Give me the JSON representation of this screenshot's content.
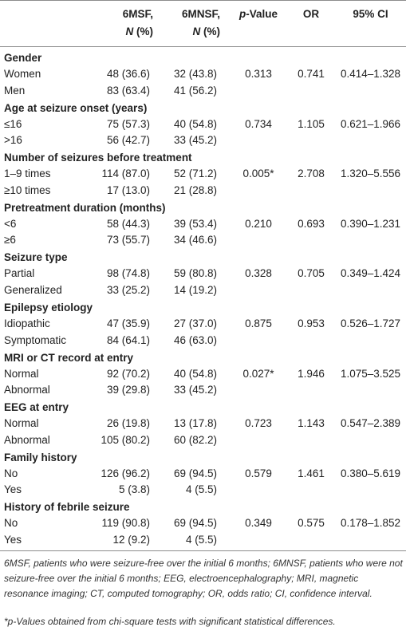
{
  "table": {
    "headers": {
      "col1_line1": "6MSF,",
      "col1_n": "N",
      "col1_pct": " (%)",
      "col2_line1": "6MNSF,",
      "col2_n": "N",
      "col2_pct": " (%)",
      "col3_p": "p",
      "col3_rest": "-Value",
      "col4": "OR",
      "col5": "95% CI"
    },
    "sections": [
      {
        "title": "Gender",
        "p": "0.313",
        "or": "0.741",
        "ci": "0.414–1.328",
        "rows": [
          {
            "label": "Women",
            "a": "48 (36.6)",
            "b": "32 (43.8)"
          },
          {
            "label": "Men",
            "a": "83 (63.4)",
            "b": "41 (56.2)"
          }
        ]
      },
      {
        "title": "Age at seizure onset (years)",
        "p": "0.734",
        "or": "1.105",
        "ci": "0.621–1.966",
        "rows": [
          {
            "label": "≤16",
            "a": "75 (57.3)",
            "b": "40 (54.8)"
          },
          {
            "label": ">16",
            "a": "56 (42.7)",
            "b": "33 (45.2)"
          }
        ]
      },
      {
        "title": "Number of seizures before treatment",
        "p": "0.005*",
        "or": "2.708",
        "ci": "1.320–5.556",
        "rows": [
          {
            "label": "1–9 times",
            "a": "114 (87.0)",
            "b": "52 (71.2)"
          },
          {
            "label": "≥10 times",
            "a": "17 (13.0)",
            "b": "21 (28.8)"
          }
        ]
      },
      {
        "title": "Pretreatment duration (months)",
        "p": "0.210",
        "or": "0.693",
        "ci": "0.390–1.231",
        "rows": [
          {
            "label": "<6",
            "a": "58 (44.3)",
            "b": "39 (53.4)"
          },
          {
            "label": "≥6",
            "a": "73 (55.7)",
            "b": "34 (46.6)"
          }
        ]
      },
      {
        "title": "Seizure type",
        "p": "0.328",
        "or": "0.705",
        "ci": "0.349–1.424",
        "rows": [
          {
            "label": "Partial",
            "a": "98 (74.8)",
            "b": "59 (80.8)"
          },
          {
            "label": "Generalized",
            "a": "33 (25.2)",
            "b": "14 (19.2)"
          }
        ]
      },
      {
        "title": "Epilepsy etiology",
        "p": "0.875",
        "or": "0.953",
        "ci": "0.526–1.727",
        "rows": [
          {
            "label": "Idiopathic",
            "a": "47 (35.9)",
            "b": "27 (37.0)"
          },
          {
            "label": "Symptomatic",
            "a": "84 (64.1)",
            "b": "46 (63.0)"
          }
        ]
      },
      {
        "title": "MRI or CT record at entry",
        "p": "0.027*",
        "or": "1.946",
        "ci": "1.075–3.525",
        "rows": [
          {
            "label": "Normal",
            "a": "92 (70.2)",
            "b": "40 (54.8)"
          },
          {
            "label": "Abnormal",
            "a": "39 (29.8)",
            "b": "33 (45.2)"
          }
        ]
      },
      {
        "title": "EEG at entry",
        "p": "0.723",
        "or": "1.143",
        "ci": "0.547–2.389",
        "rows": [
          {
            "label": "Normal",
            "a": "26 (19.8)",
            "b": "13 (17.8)"
          },
          {
            "label": "Abnormal",
            "a": "105 (80.2)",
            "b": "60 (82.2)"
          }
        ]
      },
      {
        "title": "Family history",
        "p": "0.579",
        "or": "1.461",
        "ci": "0.380–5.619",
        "rows": [
          {
            "label": "No",
            "a": "126 (96.2)",
            "b": "69 (94.5)"
          },
          {
            "label": "Yes",
            "a": "5 (3.8)",
            "b": "4 (5.5)"
          }
        ]
      },
      {
        "title": "History of febrile seizure",
        "p": "0.349",
        "or": "0.575",
        "ci": "0.178–1.852",
        "rows": [
          {
            "label": "No",
            "a": "119 (90.8)",
            "b": "69 (94.5)"
          },
          {
            "label": "Yes",
            "a": "12 (9.2)",
            "b": "4 (5.5)"
          }
        ]
      }
    ]
  },
  "footnotes": {
    "abbreviations": "6MSF, patients who were seizure-free over the initial 6 months; 6MNSF, patients who were not seizure-free over the initial 6 months; EEG, electroencephalography; MRI, magnetic resonance imaging; CT, computed tomography; OR, odds ratio; CI, confidence interval.",
    "significance": "*p-Values obtained from chi-square tests with significant statistical differences."
  }
}
